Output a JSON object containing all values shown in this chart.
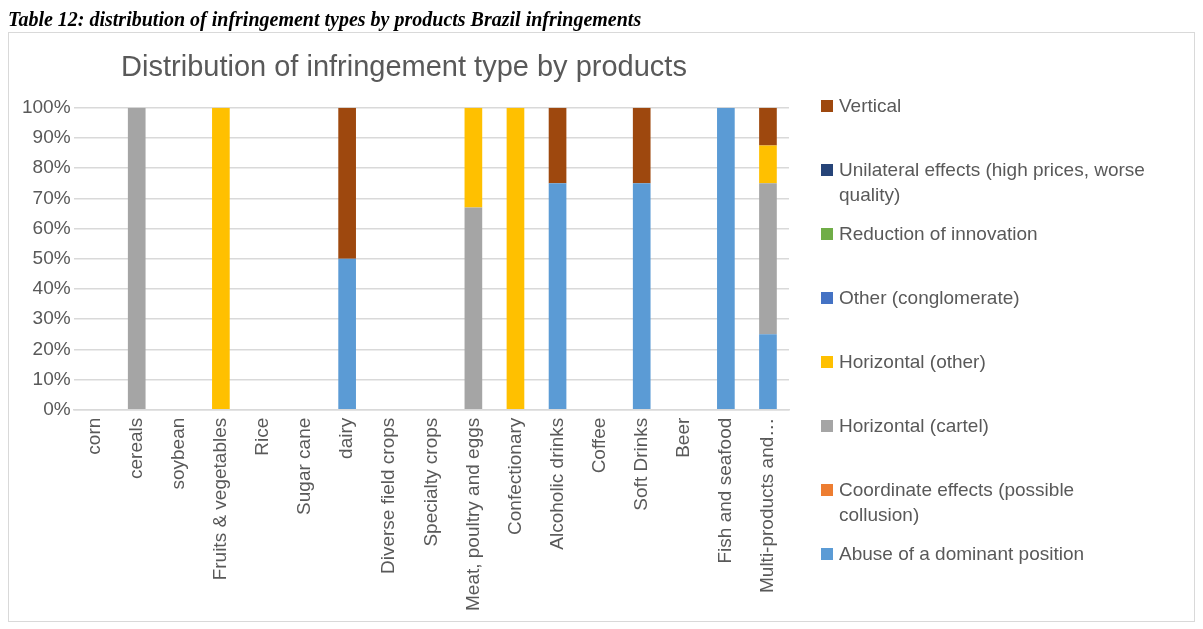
{
  "chart_data": {
    "type": "bar",
    "title": "Distribution of infringement type by products",
    "annotations": [
      "Table 12: distribution of infringement types by products Brazil infringements"
    ],
    "categories": [
      "corn",
      "cereals",
      "soybean",
      "Fruits & vegetables",
      "Rice",
      "Sugar cane",
      "dairy",
      "Diverse field crops",
      "Specialty crops",
      "Meat, poultry and eggs",
      "Confectionary",
      "Alcoholic drinks",
      "Coffee",
      "Soft Drinks",
      "Beer",
      "Fish and seafood",
      "Multi-products and…"
    ],
    "stacked": true,
    "ylim": [
      0,
      100
    ],
    "yticks": [
      {
        "value": 0,
        "label": "0%"
      },
      {
        "value": 10,
        "label": "10%"
      },
      {
        "value": 20,
        "label": "20%"
      },
      {
        "value": 30,
        "label": "30%"
      },
      {
        "value": 40,
        "label": "40%"
      },
      {
        "value": 50,
        "label": "50%"
      },
      {
        "value": 60,
        "label": "60%"
      },
      {
        "value": 70,
        "label": "70%"
      },
      {
        "value": 80,
        "label": "80%"
      },
      {
        "value": 90,
        "label": "90%"
      },
      {
        "value": 100,
        "label": "100%"
      }
    ],
    "grid": "y",
    "legend": "right",
    "series": [
      {
        "name": "Abuse of a dominant position",
        "color": "#5b9bd5",
        "values": [
          0,
          0,
          0,
          0,
          0,
          0,
          50,
          0,
          0,
          0,
          0,
          75,
          0,
          75,
          0,
          100,
          25
        ]
      },
      {
        "name": "Coordinate effects (possible collusion)",
        "color": "#ed7d31",
        "values": [
          0,
          0,
          0,
          0,
          0,
          0,
          0,
          0,
          0,
          0,
          0,
          0,
          0,
          0,
          0,
          0,
          0
        ]
      },
      {
        "name": "Horizontal (cartel)",
        "color": "#a5a5a5",
        "values": [
          0,
          100,
          0,
          0,
          0,
          0,
          0,
          0,
          0,
          67,
          0,
          0,
          0,
          0,
          0,
          0,
          50
        ]
      },
      {
        "name": "Horizontal (other)",
        "color": "#ffc000",
        "values": [
          0,
          0,
          0,
          100,
          0,
          0,
          0,
          0,
          0,
          33,
          100,
          0,
          0,
          0,
          0,
          0,
          12.5
        ]
      },
      {
        "name": "Other (conglomerate)",
        "color": "#4472c4",
        "values": [
          0,
          0,
          0,
          0,
          0,
          0,
          0,
          0,
          0,
          0,
          0,
          0,
          0,
          0,
          0,
          0,
          0
        ]
      },
      {
        "name": "Reduction of innovation",
        "color": "#70ad47",
        "values": [
          0,
          0,
          0,
          0,
          0,
          0,
          0,
          0,
          0,
          0,
          0,
          0,
          0,
          0,
          0,
          0,
          0
        ]
      },
      {
        "name": "Unilateral effects (high prices, worse quality)",
        "color": "#264478",
        "values": [
          0,
          0,
          0,
          0,
          0,
          0,
          0,
          0,
          0,
          0,
          0,
          0,
          0,
          0,
          0,
          0,
          0
        ]
      },
      {
        "name": "Vertical",
        "color": "#9e480e",
        "values": [
          0,
          0,
          0,
          0,
          0,
          0,
          50,
          0,
          0,
          0,
          0,
          25,
          0,
          25,
          0,
          0,
          12.5
        ]
      }
    ]
  }
}
